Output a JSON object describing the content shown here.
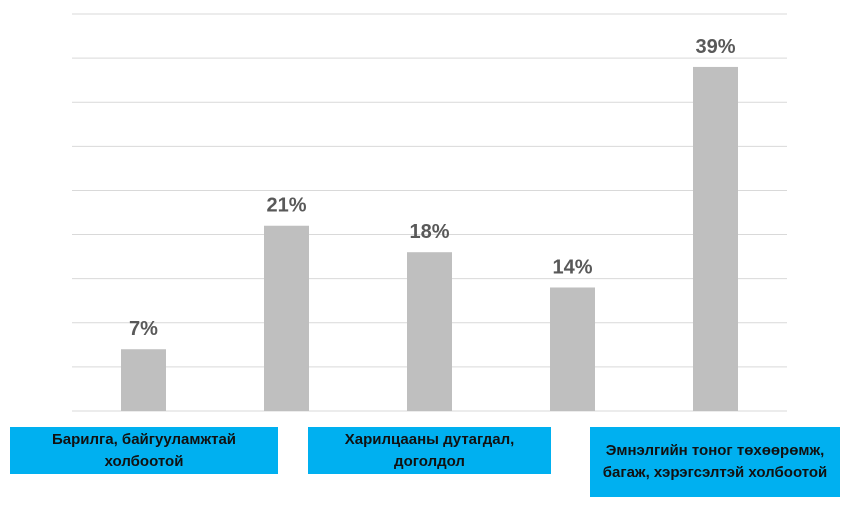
{
  "chart_data": {
    "type": "bar",
    "categories": [
      "Барилга, байгууламжтай холбоотой",
      null,
      "Харилцааны дутагдал, доголдол",
      null,
      "Эмнэлгийн тоног төхөөрөмж, багаж, хэрэгсэлтэй холбоотой"
    ],
    "values": [
      7,
      21,
      18,
      14,
      39
    ],
    "value_labels": [
      "7%",
      "21%",
      "18%",
      "14%",
      "39%"
    ],
    "color": "#bfbfbf",
    "ylim": [
      0,
      45
    ],
    "yticks": [
      0,
      5,
      10,
      15,
      20,
      25,
      30,
      35,
      40,
      45
    ],
    "grid": true
  }
}
